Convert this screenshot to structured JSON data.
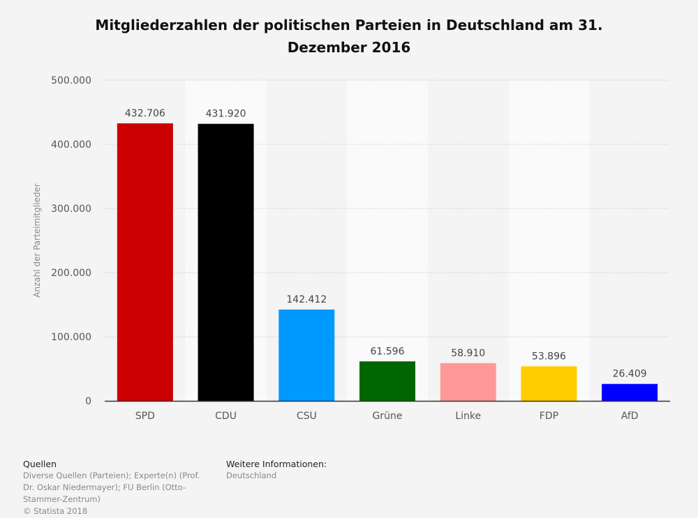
{
  "chart_data": {
    "type": "bar",
    "title": "Mitgliederzahlen der politischen Parteien in Deutschland am 31. Dezember 2016",
    "xlabel": "",
    "ylabel": "Anzahl der Parteimitglieder",
    "ylim": [
      0,
      500000
    ],
    "yticks": [
      0,
      100000,
      200000,
      300000,
      400000,
      500000
    ],
    "ytick_labels": [
      "0",
      "100.000",
      "200.000",
      "300.000",
      "400.000",
      "500.000"
    ],
    "grid": true,
    "categories": [
      "SPD",
      "CDU",
      "CSU",
      "Grüne",
      "Linke",
      "FDP",
      "AfD"
    ],
    "values": [
      432706,
      431920,
      142412,
      61596,
      58910,
      53896,
      26409
    ],
    "value_labels": [
      "432.706",
      "431.920",
      "142.412",
      "61.596",
      "58.910",
      "53.896",
      "26.409"
    ],
    "colors": [
      "#cc0000",
      "#000000",
      "#0099ff",
      "#006600",
      "#ff9999",
      "#ffcc00",
      "#0000ff"
    ]
  },
  "footer": {
    "sources_heading": "Quellen",
    "sources_lines": [
      "Diverse Quellen (Parteien); Experte(n) (Prof.",
      "Dr. Oskar Niedermayer); FU Berlin (Otto-",
      "Stammer-Zentrum)",
      "© Statista 2018"
    ],
    "info_heading": "Weitere Informationen:",
    "info_text": "Deutschland"
  }
}
